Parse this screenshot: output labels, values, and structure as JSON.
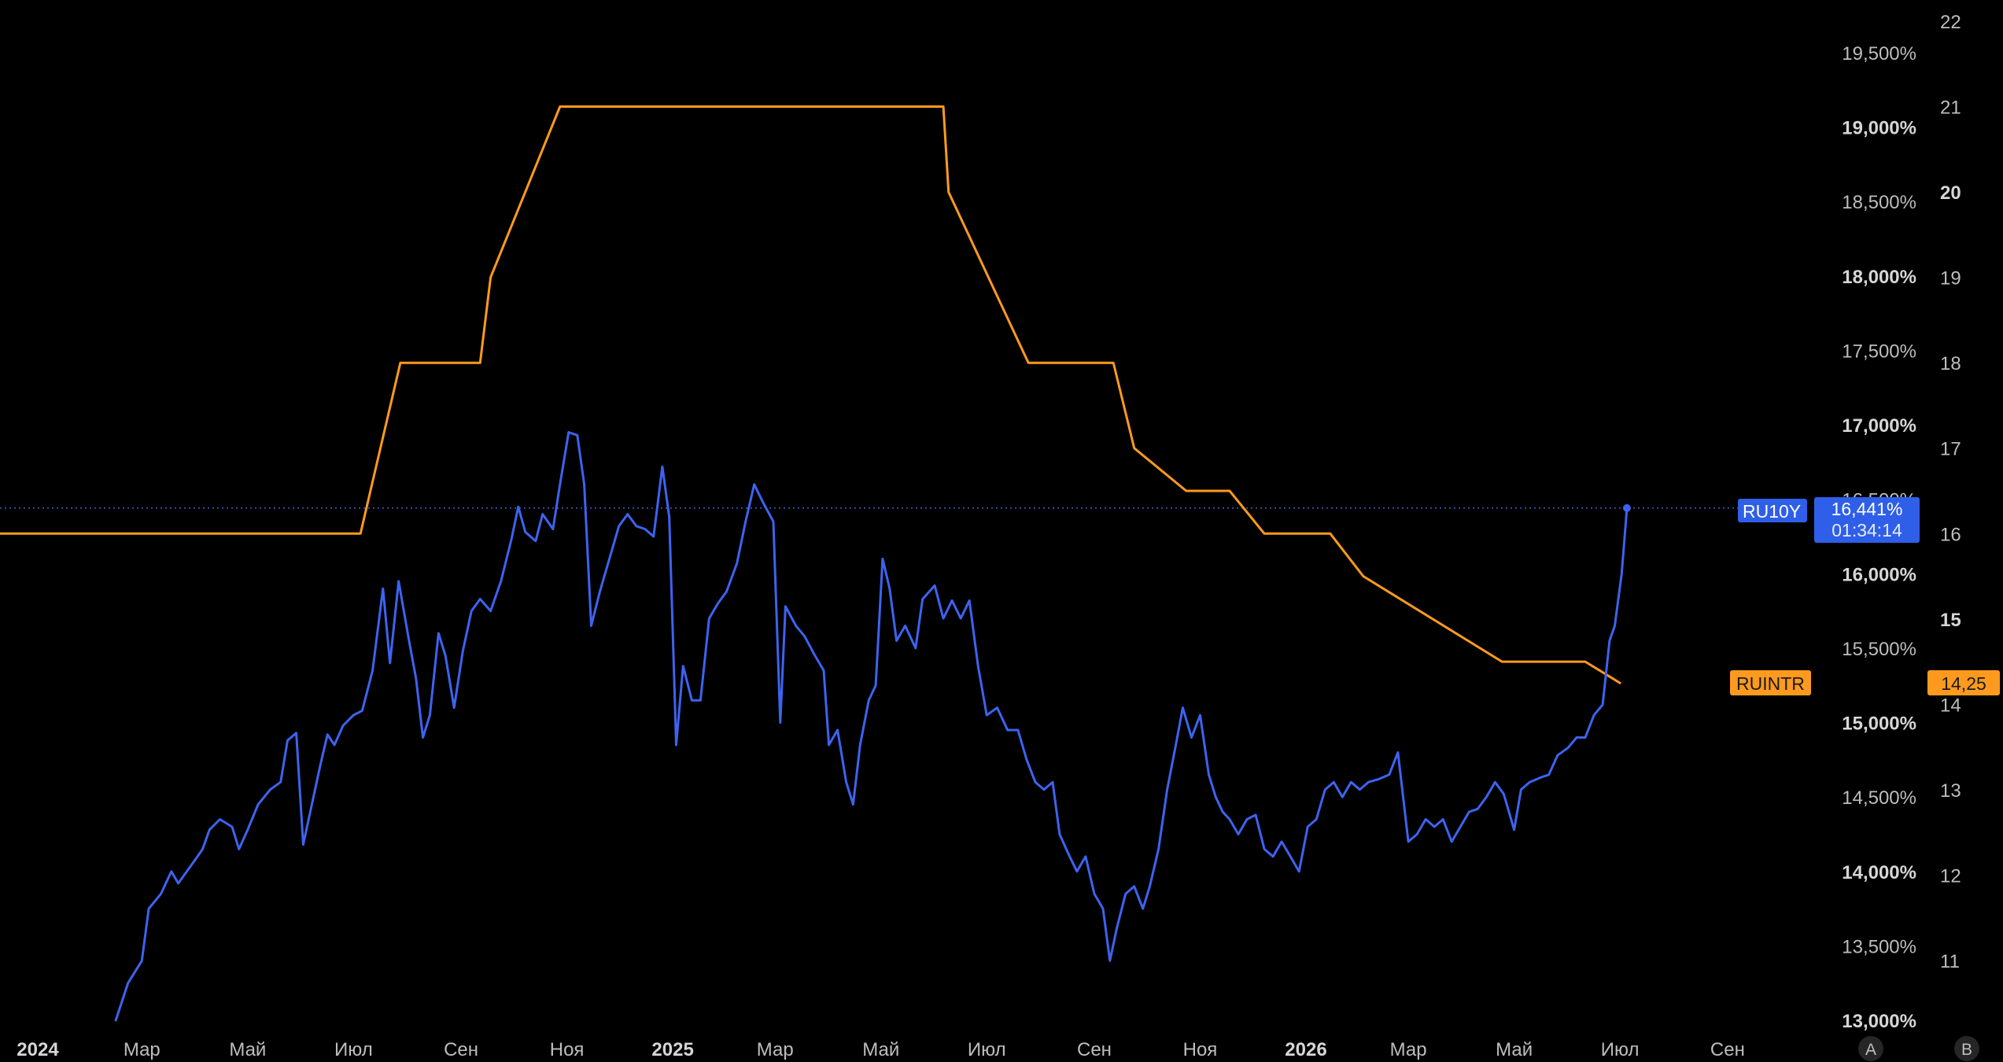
{
  "chart_data": {
    "type": "line",
    "x_axis": {
      "tick_labels": [
        {
          "label": "2024",
          "bold": true,
          "date": "2024-01"
        },
        {
          "label": "Мар",
          "bold": false,
          "date": "2024-03"
        },
        {
          "label": "Май",
          "bold": false,
          "date": "2024-05"
        },
        {
          "label": "Июл",
          "bold": false,
          "date": "2024-07"
        },
        {
          "label": "Сен",
          "bold": false,
          "date": "2024-09"
        },
        {
          "label": "Ноя",
          "bold": false,
          "date": "2024-11"
        },
        {
          "label": "2025",
          "bold": true,
          "date": "2025-01"
        },
        {
          "label": "Мар",
          "bold": false,
          "date": "2025-03"
        },
        {
          "label": "Май",
          "bold": false,
          "date": "2025-05"
        },
        {
          "label": "Июл",
          "bold": false,
          "date": "2025-07"
        },
        {
          "label": "Сен",
          "bold": false,
          "date": "2025-09"
        },
        {
          "label": "Ноя",
          "bold": false,
          "date": "2025-11"
        },
        {
          "label": "2026",
          "bold": true,
          "date": "2026-01"
        },
        {
          "label": "Мар",
          "bold": false,
          "date": "2026-03"
        },
        {
          "label": "Май",
          "bold": false,
          "date": "2026-05"
        },
        {
          "label": "Июл",
          "bold": false,
          "date": "2026-07"
        },
        {
          "label": "Сен",
          "bold": false,
          "date": "2026-09"
        }
      ]
    },
    "y_axis_left_pct": {
      "ylim": [
        13.0,
        19.75
      ],
      "ticks": [
        {
          "label": "13,000%",
          "value": 13.0,
          "bold": true
        },
        {
          "label": "13,500%",
          "value": 13.5,
          "bold": false
        },
        {
          "label": "14,000%",
          "value": 14.0,
          "bold": true
        },
        {
          "label": "14,500%",
          "value": 14.5,
          "bold": false
        },
        {
          "label": "15,000%",
          "value": 15.0,
          "bold": true
        },
        {
          "label": "15,500%",
          "value": 15.5,
          "bold": false
        },
        {
          "label": "16,000%",
          "value": 16.0,
          "bold": true
        },
        {
          "label": "16,500%",
          "value": 16.5,
          "bold": false
        },
        {
          "label": "17,000%",
          "value": 17.0,
          "bold": true
        },
        {
          "label": "17,500%",
          "value": 17.5,
          "bold": false
        },
        {
          "label": "18,000%",
          "value": 18.0,
          "bold": true
        },
        {
          "label": "18,500%",
          "value": 18.5,
          "bold": false
        },
        {
          "label": "19,000%",
          "value": 19.0,
          "bold": true
        },
        {
          "label": "19,500%",
          "value": 19.5,
          "bold": false
        }
      ]
    },
    "y_axis_right": {
      "ylim": [
        10.35,
        22.25
      ],
      "ticks": [
        {
          "label": "11",
          "value": 11,
          "bold": false
        },
        {
          "label": "12",
          "value": 12,
          "bold": false
        },
        {
          "label": "13",
          "value": 13,
          "bold": false
        },
        {
          "label": "14",
          "value": 14,
          "bold": false
        },
        {
          "label": "15",
          "value": 15,
          "bold": true
        },
        {
          "label": "16",
          "value": 16,
          "bold": false
        },
        {
          "label": "17",
          "value": 17,
          "bold": false
        },
        {
          "label": "18",
          "value": 18,
          "bold": false
        },
        {
          "label": "19",
          "value": 19,
          "bold": false
        },
        {
          "label": "20",
          "value": 20,
          "bold": true
        },
        {
          "label": "21",
          "value": 21,
          "bold": false
        },
        {
          "label": "22",
          "value": 22,
          "bold": false
        }
      ]
    },
    "series": [
      {
        "name": "RU10Y",
        "color": "#3d63f0",
        "axis": "left",
        "last_value_label": "16,441%",
        "countdown_label": "01:34:14",
        "points": [
          [
            "2024-02-15",
            13.0
          ],
          [
            "2024-02-22",
            13.25
          ],
          [
            "2024-03-01",
            13.4
          ],
          [
            "2024-03-05",
            13.75
          ],
          [
            "2024-03-12",
            13.85
          ],
          [
            "2024-03-18",
            14.0
          ],
          [
            "2024-03-22",
            13.92
          ],
          [
            "2024-03-30",
            14.05
          ],
          [
            "2024-04-05",
            14.15
          ],
          [
            "2024-04-09",
            14.28
          ],
          [
            "2024-04-15",
            14.35
          ],
          [
            "2024-04-22",
            14.3
          ],
          [
            "2024-04-26",
            14.15
          ],
          [
            "2024-05-01",
            14.28
          ],
          [
            "2024-05-07",
            14.45
          ],
          [
            "2024-05-14",
            14.55
          ],
          [
            "2024-05-20",
            14.6
          ],
          [
            "2024-05-24",
            14.88
          ],
          [
            "2024-05-29",
            14.93
          ],
          [
            "2024-06-02",
            14.18
          ],
          [
            "2024-06-07",
            14.45
          ],
          [
            "2024-06-12",
            14.72
          ],
          [
            "2024-06-16",
            14.92
          ],
          [
            "2024-06-20",
            14.85
          ],
          [
            "2024-06-25",
            14.98
          ],
          [
            "2024-07-01",
            15.05
          ],
          [
            "2024-07-06",
            15.08
          ],
          [
            "2024-07-12",
            15.35
          ],
          [
            "2024-07-18",
            15.9
          ],
          [
            "2024-07-22",
            15.4
          ],
          [
            "2024-07-27",
            15.95
          ],
          [
            "2024-08-02",
            15.55
          ],
          [
            "2024-08-06",
            15.3
          ],
          [
            "2024-08-10",
            14.9
          ],
          [
            "2024-08-14",
            15.05
          ],
          [
            "2024-08-19",
            15.6
          ],
          [
            "2024-08-23",
            15.45
          ],
          [
            "2024-08-28",
            15.1
          ],
          [
            "2024-09-02",
            15.48
          ],
          [
            "2024-09-07",
            15.75
          ],
          [
            "2024-09-12",
            15.83
          ],
          [
            "2024-09-18",
            15.75
          ],
          [
            "2024-09-24",
            15.95
          ],
          [
            "2024-09-30",
            16.23
          ],
          [
            "2024-10-04",
            16.45
          ],
          [
            "2024-10-08",
            16.28
          ],
          [
            "2024-10-14",
            16.22
          ],
          [
            "2024-10-18",
            16.4
          ],
          [
            "2024-10-24",
            16.3
          ],
          [
            "2024-10-28",
            16.6
          ],
          [
            "2024-11-02",
            16.95
          ],
          [
            "2024-11-07",
            16.93
          ],
          [
            "2024-11-11",
            16.6
          ],
          [
            "2024-11-15",
            15.65
          ],
          [
            "2024-11-20",
            15.88
          ],
          [
            "2024-11-25",
            16.08
          ],
          [
            "2024-12-01",
            16.32
          ],
          [
            "2024-12-06",
            16.4
          ],
          [
            "2024-12-11",
            16.32
          ],
          [
            "2024-12-16",
            16.3
          ],
          [
            "2024-12-21",
            16.25
          ],
          [
            "2024-12-26",
            16.72
          ],
          [
            "2024-12-30",
            16.38
          ],
          [
            "2025-01-03",
            14.85
          ],
          [
            "2025-01-07",
            15.38
          ],
          [
            "2025-01-12",
            15.15
          ],
          [
            "2025-01-17",
            15.15
          ],
          [
            "2025-01-22",
            15.7
          ],
          [
            "2025-01-27",
            15.8
          ],
          [
            "2025-02-01",
            15.88
          ],
          [
            "2025-02-07",
            16.07
          ],
          [
            "2025-02-12",
            16.35
          ],
          [
            "2025-02-17",
            16.6
          ],
          [
            "2025-02-22",
            16.48
          ],
          [
            "2025-02-28",
            16.35
          ],
          [
            "2025-03-04",
            15.0
          ],
          [
            "2025-03-07",
            15.78
          ],
          [
            "2025-03-13",
            15.65
          ],
          [
            "2025-03-18",
            15.58
          ],
          [
            "2025-03-24",
            15.45
          ],
          [
            "2025-03-29",
            15.35
          ],
          [
            "2025-04-01",
            14.85
          ],
          [
            "2025-04-06",
            14.95
          ],
          [
            "2025-04-11",
            14.6
          ],
          [
            "2025-04-15",
            14.45
          ],
          [
            "2025-04-19",
            14.85
          ],
          [
            "2025-04-24",
            15.15
          ],
          [
            "2025-04-28",
            15.25
          ],
          [
            "2025-05-02",
            16.1
          ],
          [
            "2025-05-06",
            15.9
          ],
          [
            "2025-05-10",
            15.55
          ],
          [
            "2025-05-15",
            15.65
          ],
          [
            "2025-05-21",
            15.5
          ],
          [
            "2025-05-25",
            15.83
          ],
          [
            "2025-06-01",
            15.92
          ],
          [
            "2025-06-06",
            15.7
          ],
          [
            "2025-06-11",
            15.82
          ],
          [
            "2025-06-16",
            15.7
          ],
          [
            "2025-06-21",
            15.82
          ],
          [
            "2025-06-26",
            15.38
          ],
          [
            "2025-07-01",
            15.05
          ],
          [
            "2025-07-07",
            15.1
          ],
          [
            "2025-07-13",
            14.95
          ],
          [
            "2025-07-19",
            14.95
          ],
          [
            "2025-07-24",
            14.75
          ],
          [
            "2025-07-29",
            14.6
          ],
          [
            "2025-08-03",
            14.55
          ],
          [
            "2025-08-08",
            14.6
          ],
          [
            "2025-08-12",
            14.25
          ],
          [
            "2025-08-17",
            14.12
          ],
          [
            "2025-08-22",
            14.0
          ],
          [
            "2025-08-27",
            14.1
          ],
          [
            "2025-09-01",
            13.85
          ],
          [
            "2025-09-06",
            13.75
          ],
          [
            "2025-09-10",
            13.4
          ],
          [
            "2025-09-14",
            13.62
          ],
          [
            "2025-09-19",
            13.85
          ],
          [
            "2025-09-24",
            13.9
          ],
          [
            "2025-09-29",
            13.75
          ],
          [
            "2025-10-03",
            13.9
          ],
          [
            "2025-10-08",
            14.15
          ],
          [
            "2025-10-13",
            14.55
          ],
          [
            "2025-10-18",
            14.85
          ],
          [
            "2025-10-22",
            15.1
          ],
          [
            "2025-10-27",
            14.9
          ],
          [
            "2025-11-01",
            15.05
          ],
          [
            "2025-11-06",
            14.65
          ],
          [
            "2025-11-10",
            14.5
          ],
          [
            "2025-11-14",
            14.4
          ],
          [
            "2025-11-18",
            14.35
          ],
          [
            "2025-11-23",
            14.25
          ],
          [
            "2025-11-28",
            14.35
          ],
          [
            "2025-12-03",
            14.38
          ],
          [
            "2025-12-08",
            14.15
          ],
          [
            "2025-12-13",
            14.1
          ],
          [
            "2025-12-18",
            14.2
          ],
          [
            "2025-12-23",
            14.1
          ],
          [
            "2025-12-28",
            14.0
          ],
          [
            "2026-01-02",
            14.3
          ],
          [
            "2026-01-07",
            14.35
          ],
          [
            "2026-01-12",
            14.55
          ],
          [
            "2026-01-17",
            14.6
          ],
          [
            "2026-01-22",
            14.5
          ],
          [
            "2026-01-27",
            14.6
          ],
          [
            "2026-02-01",
            14.55
          ],
          [
            "2026-02-06",
            14.6
          ],
          [
            "2026-02-12",
            14.62
          ],
          [
            "2026-02-18",
            14.65
          ],
          [
            "2026-02-23",
            14.8
          ],
          [
            "2026-03-01",
            14.2
          ],
          [
            "2026-03-06",
            14.25
          ],
          [
            "2026-03-11",
            14.35
          ],
          [
            "2026-03-16",
            14.3
          ],
          [
            "2026-03-21",
            14.35
          ],
          [
            "2026-03-26",
            14.2
          ],
          [
            "2026-03-31",
            14.3
          ],
          [
            "2026-04-05",
            14.4
          ],
          [
            "2026-04-10",
            14.42
          ],
          [
            "2026-04-15",
            14.5
          ],
          [
            "2026-04-20",
            14.6
          ],
          [
            "2026-04-25",
            14.52
          ],
          [
            "2026-05-01",
            14.28
          ],
          [
            "2026-05-05",
            14.55
          ],
          [
            "2026-05-10",
            14.6
          ],
          [
            "2026-05-16",
            14.63
          ],
          [
            "2026-05-21",
            14.65
          ],
          [
            "2026-05-26",
            14.78
          ],
          [
            "2026-06-01",
            14.83
          ],
          [
            "2026-06-06",
            14.9
          ],
          [
            "2026-06-11",
            14.9
          ],
          [
            "2026-06-16",
            15.05
          ],
          [
            "2026-06-21",
            15.12
          ],
          [
            "2026-06-25",
            15.55
          ],
          [
            "2026-06-28",
            15.65
          ],
          [
            "2026-07-02",
            16.0
          ],
          [
            "2026-07-05",
            16.441
          ]
        ]
      },
      {
        "name": "RUINTR",
        "color": "#ff9a1e",
        "axis": "right",
        "last_value_label": "14,25",
        "points": [
          [
            "2023-12-01",
            16.0
          ],
          [
            "2023-12-08",
            16.0
          ],
          [
            "2024-07-05",
            16.0
          ],
          [
            "2024-07-28",
            18.0
          ],
          [
            "2024-09-12",
            18.0
          ],
          [
            "2024-09-18",
            19.0
          ],
          [
            "2024-10-28",
            21.0
          ],
          [
            "2025-06-06",
            21.0
          ],
          [
            "2025-06-09",
            20.0
          ],
          [
            "2025-07-25",
            18.0
          ],
          [
            "2025-09-12",
            18.0
          ],
          [
            "2025-09-24",
            17.0
          ],
          [
            "2025-10-24",
            16.5
          ],
          [
            "2025-11-18",
            16.5
          ],
          [
            "2025-12-08",
            16.0
          ],
          [
            "2026-01-15",
            16.0
          ],
          [
            "2026-02-03",
            15.5
          ],
          [
            "2026-04-24",
            14.5
          ],
          [
            "2026-06-11",
            14.5
          ],
          [
            "2026-07-01",
            14.25
          ]
        ]
      }
    ],
    "current_price_line": {
      "value": 16.441,
      "axis": "left"
    },
    "bottom_right_badges": [
      "A",
      "B"
    ],
    "colors": {
      "background": "#000000",
      "ru10y": "#3d63f0",
      "ruintr": "#ff9a1e",
      "axis_text": "#bdbdbd"
    }
  }
}
